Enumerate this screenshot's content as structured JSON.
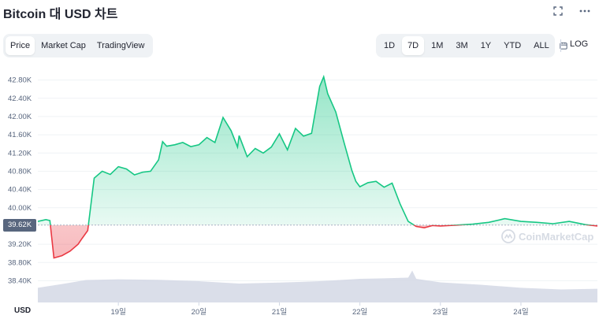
{
  "header": {
    "title": "Bitcoin 대 USD 차트"
  },
  "tabs": [
    {
      "label": "Price",
      "active": true
    },
    {
      "label": "Market Cap",
      "active": false
    },
    {
      "label": "TradingView",
      "active": false
    }
  ],
  "ranges": [
    {
      "label": "1D",
      "active": false
    },
    {
      "label": "7D",
      "active": true
    },
    {
      "label": "1M",
      "active": false
    },
    {
      "label": "3M",
      "active": false
    },
    {
      "label": "1Y",
      "active": false
    },
    {
      "label": "YTD",
      "active": false
    },
    {
      "label": "ALL",
      "active": false
    }
  ],
  "log_label": "LOG",
  "axis_currency": "USD",
  "current_price_label": "39.62K",
  "watermark": "CoinMarketCap",
  "colors": {
    "up": "#16c784",
    "down": "#ea3943",
    "volume": "#d3d8e5"
  },
  "chart_data": {
    "type": "area",
    "y_ticks": [
      "42.80K",
      "42.40K",
      "42.00K",
      "41.60K",
      "41.20K",
      "40.80K",
      "40.40K",
      "40.00K",
      "39.20K",
      "38.80K",
      "38.40K"
    ],
    "x_ticks": [
      "19일",
      "20일",
      "21일",
      "22일",
      "23일",
      "24일"
    ],
    "ylim": [
      38200,
      43000
    ],
    "baseline": 39620,
    "x_range": [
      18.0,
      24.95
    ],
    "series": [
      {
        "x": [
          18.0,
          18.1,
          18.15,
          18.2,
          18.3,
          18.4,
          18.5,
          18.55,
          18.62,
          18.7,
          18.8,
          18.9,
          19.0,
          19.1,
          19.2,
          19.3,
          19.4,
          19.5,
          19.55,
          19.6,
          19.7,
          19.8,
          19.9,
          20.0,
          20.1,
          20.2,
          20.3,
          20.4,
          20.48,
          20.5,
          20.6,
          20.7,
          20.8,
          20.9,
          21.0,
          21.1,
          21.2,
          21.3,
          21.4,
          21.5,
          21.55,
          21.6,
          21.7,
          21.8,
          21.9,
          21.95,
          22.0,
          22.1,
          22.2,
          22.3,
          22.4,
          22.5,
          22.6,
          22.7,
          22.8,
          22.9,
          23.0,
          23.2,
          23.4,
          23.6,
          23.8,
          24.0,
          24.2,
          24.4,
          24.6,
          24.8,
          24.95
        ],
        "y": [
          39700,
          39740,
          39720,
          38900,
          38950,
          39050,
          39200,
          39330,
          39500,
          40650,
          40800,
          40730,
          40900,
          40850,
          40720,
          40780,
          40800,
          41050,
          41450,
          41350,
          41380,
          41430,
          41340,
          41380,
          41540,
          41430,
          41980,
          41690,
          41330,
          41580,
          41120,
          41300,
          41200,
          41330,
          41620,
          41270,
          41740,
          41570,
          41630,
          42660,
          42870,
          42500,
          42100,
          41450,
          40820,
          40580,
          40460,
          40550,
          40580,
          40450,
          40540,
          40080,
          39700,
          39590,
          39560,
          39610,
          39600,
          39620,
          39640,
          39680,
          39760,
          39700,
          39680,
          39650,
          39700,
          39630,
          39600
        ]
      }
    ],
    "volume": {
      "x": [
        18.0,
        18.3,
        18.6,
        19.0,
        19.5,
        20.0,
        20.5,
        21.0,
        21.5,
        22.0,
        22.3,
        22.6,
        22.65,
        22.7,
        23.0,
        23.5,
        24.0,
        24.5,
        24.95
      ],
      "v": [
        0.62,
        0.78,
        0.95,
        0.98,
        0.96,
        0.9,
        0.8,
        0.84,
        0.9,
        1.0,
        1.02,
        1.05,
        1.35,
        1.0,
        0.85,
        0.75,
        0.62,
        0.55,
        0.58
      ]
    }
  }
}
